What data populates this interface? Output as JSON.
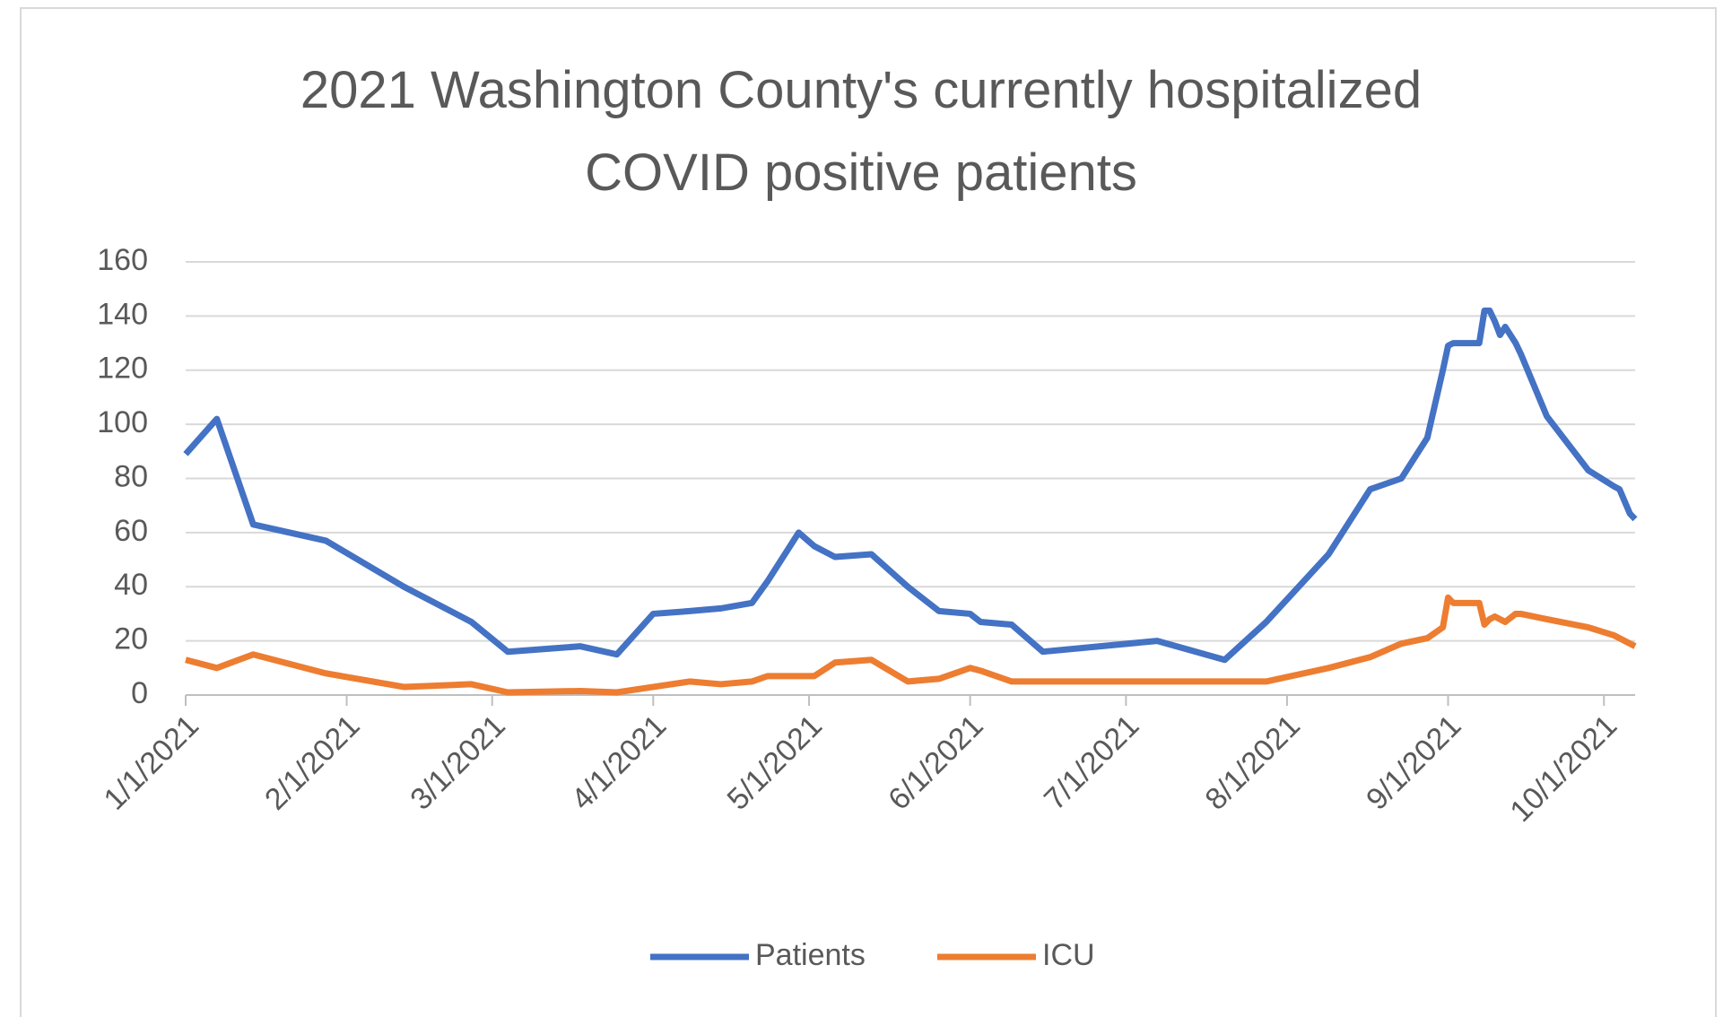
{
  "chart_data": {
    "type": "line",
    "title": "2021 Washington County's currently hospitalized COVID positive patients",
    "x": [
      "2021-01-01",
      "2021-01-07",
      "2021-01-14",
      "2021-01-28",
      "2021-02-12",
      "2021-02-25",
      "2021-03-04",
      "2021-03-18",
      "2021-03-25",
      "2021-04-01",
      "2021-04-08",
      "2021-04-14",
      "2021-04-20",
      "2021-04-23",
      "2021-04-29",
      "2021-05-02",
      "2021-05-06",
      "2021-05-13",
      "2021-05-20",
      "2021-05-26",
      "2021-06-01",
      "2021-06-03",
      "2021-06-09",
      "2021-06-15",
      "2021-07-07",
      "2021-07-20",
      "2021-07-28",
      "2021-08-09",
      "2021-08-17",
      "2021-08-23",
      "2021-08-28",
      "2021-08-31",
      "2021-09-01",
      "2021-09-02",
      "2021-09-06",
      "2021-09-07",
      "2021-09-08",
      "2021-09-09",
      "2021-09-10",
      "2021-09-11",
      "2021-09-12",
      "2021-09-14",
      "2021-09-15",
      "2021-09-20",
      "2021-09-28",
      "2021-10-03",
      "2021-10-04",
      "2021-10-06",
      "2021-10-07"
    ],
    "series": [
      {
        "name": "Patients",
        "color": "#4472c4",
        "values": [
          89,
          102,
          63,
          57,
          40,
          27,
          16,
          18,
          15,
          30,
          31,
          32,
          34,
          42,
          60,
          55,
          51,
          52,
          40,
          31,
          30,
          27,
          26,
          16,
          20,
          13,
          27,
          52,
          76,
          80,
          95,
          120,
          129,
          130,
          130,
          130,
          142,
          142,
          138,
          133,
          136,
          130,
          126,
          103,
          83,
          77,
          76,
          67,
          65
        ]
      },
      {
        "name": "ICU",
        "color": "#ed7d31",
        "values": [
          13,
          10,
          15,
          8,
          3,
          4,
          1,
          1.5,
          1,
          3,
          5,
          4,
          5,
          7,
          7,
          7,
          12,
          13,
          5,
          6,
          10,
          9,
          5,
          5,
          5,
          5,
          5,
          10,
          14,
          19,
          21,
          25,
          36,
          34,
          34,
          34,
          26,
          28,
          29,
          28,
          27,
          30,
          30,
          28,
          25,
          22,
          21,
          19,
          18
        ]
      }
    ],
    "xlim": [
      "2021-01-01",
      "2021-10-07"
    ],
    "xticks": [
      {
        "value": "2021-01-01",
        "label": "1/1/2021"
      },
      {
        "value": "2021-02-01",
        "label": "2/1/2021"
      },
      {
        "value": "2021-03-01",
        "label": "3/1/2021"
      },
      {
        "value": "2021-04-01",
        "label": "4/1/2021"
      },
      {
        "value": "2021-05-01",
        "label": "5/1/2021"
      },
      {
        "value": "2021-06-01",
        "label": "6/1/2021"
      },
      {
        "value": "2021-07-01",
        "label": "7/1/2021"
      },
      {
        "value": "2021-08-01",
        "label": "8/1/2021"
      },
      {
        "value": "2021-09-01",
        "label": "9/1/2021"
      },
      {
        "value": "2021-10-01",
        "label": "10/1/2021"
      }
    ],
    "ylim": [
      0,
      160
    ],
    "yticks": [
      0,
      20,
      40,
      60,
      80,
      100,
      120,
      140,
      160
    ],
    "grid": true,
    "legend": "bottom"
  }
}
